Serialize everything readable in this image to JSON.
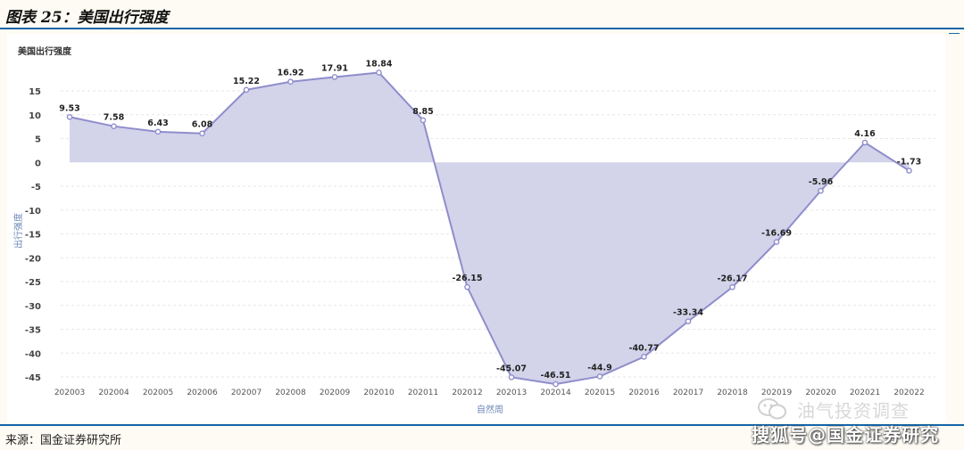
{
  "header": {
    "title": "图表 25：美国出行强度"
  },
  "footer": {
    "source": "来源：国金证券研究所"
  },
  "watermark": {
    "line1": "油气投资调查",
    "line2": "搜狐号@国金证券研究",
    "icon": "wechat-icon"
  },
  "colors": {
    "line": "#8f8dcb",
    "fill": "#d3d3ea",
    "rule": "#1565a8",
    "grid": "#e6e6e6"
  },
  "chart_data": {
    "type": "area",
    "title": "美国出行强度",
    "xlabel": "自然周",
    "ylabel": "出行强度",
    "ylim": [
      -47,
      20
    ],
    "yticks": [
      15,
      10,
      5,
      0,
      -5,
      -10,
      -15,
      -20,
      -25,
      -30,
      -35,
      -40,
      -45
    ],
    "grid": true,
    "categories": [
      "202003",
      "202004",
      "202005",
      "202006",
      "202007",
      "202008",
      "202009",
      "202010",
      "202011",
      "202012",
      "202013",
      "202014",
      "202015",
      "202016",
      "202017",
      "202018",
      "202019",
      "202020",
      "202021",
      "202022"
    ],
    "series": [
      {
        "values": [
          9.53,
          7.58,
          6.43,
          6.08,
          15.22,
          16.92,
          17.91,
          18.84,
          8.85,
          -26.15,
          -45.07,
          -46.51,
          -44.9,
          -40.77,
          -33.34,
          -26.17,
          -16.69,
          -5.96,
          4.16,
          -1.73
        ],
        "labels": [
          "9.53",
          "7.58",
          "6.43",
          "6.08",
          "15.22",
          "16.92",
          "17.91",
          "18.84",
          "8.85",
          "-26.15",
          "-45.07",
          "-46.51",
          "-44.9",
          "-40.77",
          "-33.34",
          "-26.17",
          "-16.69",
          "-5.96",
          "4.16",
          "-1.73"
        ]
      }
    ]
  }
}
